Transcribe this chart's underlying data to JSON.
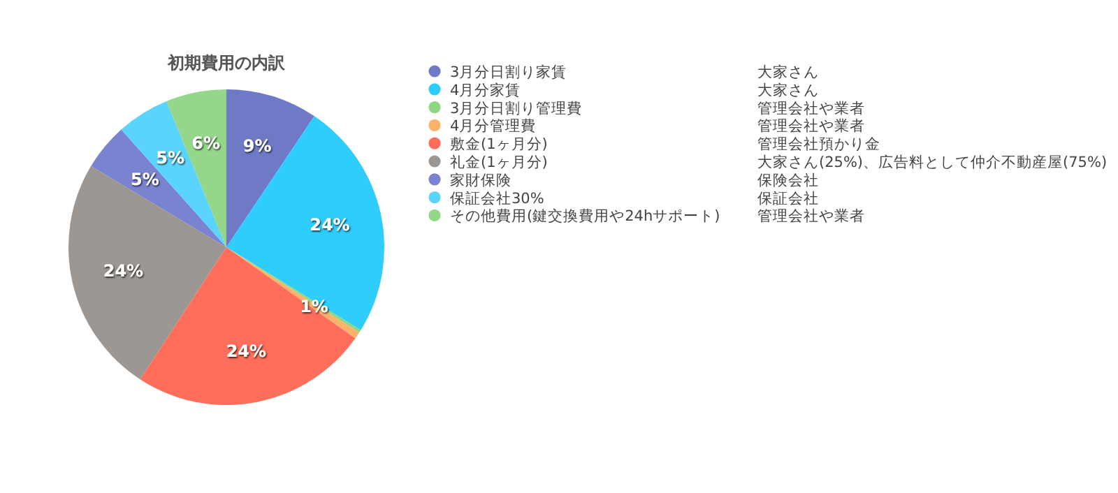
{
  "chart_data": {
    "type": "pie",
    "title": "初期費用の内訳",
    "categories": [
      "3月分日割り家賃",
      "4月分家賃",
      "3月分日割り管理費",
      "4月分管理費",
      "敷金(1ヶ月分)",
      "礼金(1ヶ月分)",
      "家財保険",
      "保証会社30%",
      "その他費用(鍵交換費用や24hサポート)"
    ],
    "values": [
      9.4,
      24.4,
      0.3,
      0.7,
      24.4,
      24.4,
      4.8,
      5.4,
      6.2
    ],
    "value_labels": [
      "9%",
      "24%",
      null,
      "1%",
      "24%",
      "24%",
      "5%",
      "5%",
      "6%"
    ],
    "colors": [
      "#6f7ac6",
      "#2ecdfb",
      "#8fd681",
      "#fdb26b",
      "#fe6e5a",
      "#9c9792",
      "#7a83d0",
      "#5bd4fb",
      "#94d68a"
    ],
    "annotations": [
      "大家さん",
      "大家さん",
      "管理会社や業者",
      "管理会社や業者",
      "管理会社預かり金",
      "大家さん(25%)、広告料として仲介不動産屋(75%)",
      "保険会社",
      "保証会社",
      "管理会社や業者"
    ],
    "legend": "right"
  }
}
